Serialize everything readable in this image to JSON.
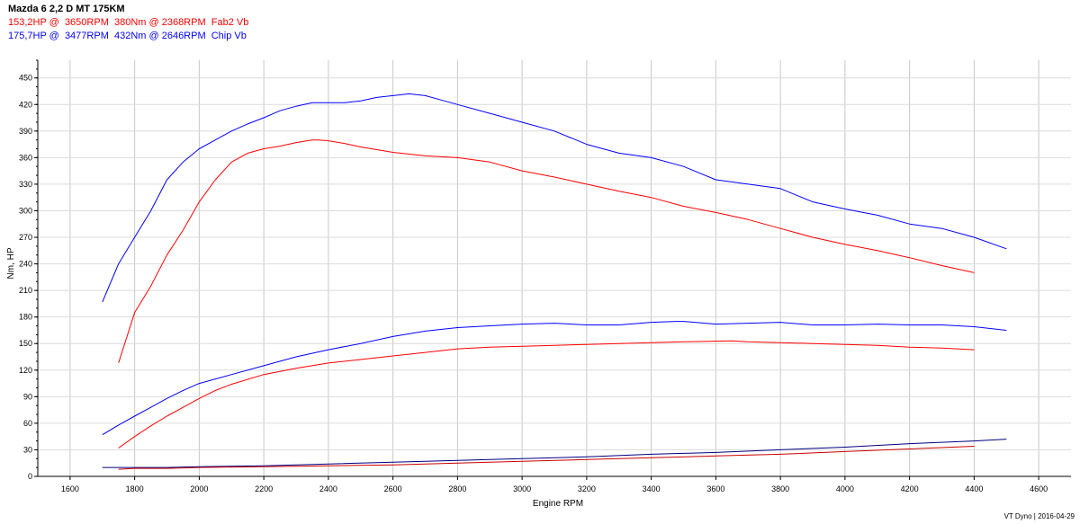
{
  "chart_data": {
    "type": "line",
    "title": "Mazda 6 2,2 D MT 175KM",
    "xlabel": "Engine RPM",
    "ylabel": "Nm, HP",
    "xlim": [
      1500,
      4700
    ],
    "ylim": [
      0,
      470
    ],
    "xticks": [
      1600,
      1800,
      2000,
      2200,
      2400,
      2600,
      2800,
      3000,
      3200,
      3400,
      3600,
      3800,
      4000,
      4200,
      4400,
      4600
    ],
    "yticks": [
      0,
      30,
      60,
      90,
      120,
      150,
      180,
      210,
      240,
      270,
      300,
      330,
      360,
      390,
      420,
      450
    ],
    "grid": true,
    "legend": [
      {
        "text": "153,2HP @  3650RPM  380Nm @ 2368RPM  Fab2 Vb",
        "color": "#ff0000"
      },
      {
        "text": "175,7HP @  3477RPM  432Nm @ 2646RPM  Chip Vb",
        "color": "#0000ff"
      }
    ],
    "footer": "VT Dyno | 2016-04-29",
    "series": [
      {
        "color": "#0000ff",
        "x": [
          1700,
          1750,
          1800,
          1850,
          1900,
          1950,
          2000,
          2050,
          2100,
          2150,
          2200,
          2250,
          2300,
          2350,
          2400,
          2450,
          2500,
          2550,
          2600,
          2650,
          2700,
          2750,
          2800,
          2900,
          3000,
          3100,
          3200,
          3300,
          3400,
          3500,
          3600,
          3700,
          3800,
          3900,
          4000,
          4100,
          4200,
          4300,
          4400,
          4500
        ],
        "values": [
          197,
          240,
          270,
          300,
          335,
          355,
          370,
          380,
          390,
          398,
          405,
          413,
          418,
          422,
          422,
          422,
          424,
          428,
          430,
          432,
          430,
          425,
          420,
          410,
          400,
          390,
          375,
          365,
          360,
          350,
          335,
          330,
          325,
          310,
          302,
          295,
          285,
          280,
          270,
          257
        ]
      },
      {
        "color": "#ff0000",
        "x": [
          1750,
          1800,
          1850,
          1900,
          1950,
          2000,
          2050,
          2100,
          2150,
          2200,
          2250,
          2300,
          2350,
          2368,
          2400,
          2450,
          2500,
          2600,
          2700,
          2800,
          2900,
          3000,
          3100,
          3200,
          3300,
          3400,
          3500,
          3600,
          3700,
          3800,
          3900,
          4000,
          4100,
          4200,
          4300,
          4400
        ],
        "values": [
          128,
          185,
          215,
          250,
          278,
          310,
          335,
          355,
          365,
          370,
          373,
          377,
          380,
          380,
          379,
          376,
          372,
          366,
          362,
          360,
          355,
          345,
          338,
          330,
          322,
          315,
          305,
          298,
          290,
          280,
          270,
          262,
          255,
          247,
          238,
          230
        ]
      },
      {
        "color": "#0000ff",
        "x": [
          1700,
          1750,
          1800,
          1850,
          1900,
          1950,
          2000,
          2100,
          2200,
          2300,
          2400,
          2500,
          2600,
          2700,
          2800,
          2900,
          3000,
          3100,
          3200,
          3300,
          3400,
          3477,
          3500,
          3600,
          3700,
          3800,
          3900,
          4000,
          4100,
          4200,
          4300,
          4400,
          4500
        ],
        "values": [
          47,
          58,
          68,
          78,
          88,
          97,
          105,
          115,
          125,
          135,
          143,
          150,
          158,
          164,
          168,
          170,
          172,
          173,
          171,
          171,
          174,
          175,
          175,
          172,
          173,
          174,
          171,
          171,
          172,
          171,
          171,
          169,
          165
        ]
      },
      {
        "color": "#ff0000",
        "x": [
          1750,
          1800,
          1850,
          1900,
          1950,
          2000,
          2050,
          2100,
          2200,
          2300,
          2400,
          2500,
          2600,
          2700,
          2800,
          2900,
          3000,
          3100,
          3200,
          3300,
          3400,
          3500,
          3650,
          3700,
          3800,
          3900,
          4000,
          4100,
          4200,
          4300,
          4400
        ],
        "values": [
          32,
          45,
          57,
          68,
          78,
          88,
          97,
          104,
          115,
          122,
          128,
          132,
          136,
          140,
          144,
          146,
          147,
          148,
          149,
          150,
          151,
          152,
          153,
          152,
          151,
          150,
          149,
          148,
          146,
          145,
          143
        ]
      },
      {
        "color": "#000080",
        "x": [
          1700,
          1800,
          1900,
          2000,
          2200,
          2400,
          2600,
          2800,
          3000,
          3200,
          3400,
          3600,
          3800,
          4000,
          4200,
          4400,
          4500
        ],
        "values": [
          10,
          10,
          10,
          11,
          12,
          14,
          16,
          18,
          20,
          22,
          25,
          27,
          30,
          33,
          37,
          40,
          42
        ]
      },
      {
        "color": "#cc0000",
        "x": [
          1750,
          1800,
          1900,
          2000,
          2200,
          2400,
          2600,
          2800,
          3000,
          3200,
          3400,
          3600,
          3800,
          4000,
          4200,
          4400
        ],
        "values": [
          8,
          9,
          9,
          10,
          11,
          12,
          13,
          15,
          17,
          19,
          21,
          23,
          25,
          28,
          31,
          34
        ]
      }
    ]
  }
}
